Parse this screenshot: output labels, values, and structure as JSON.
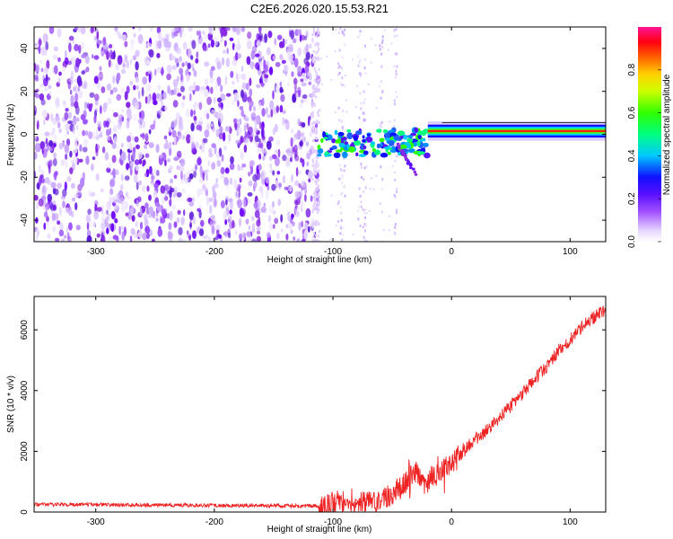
{
  "figure": {
    "title": "C2E6.2026.020.15.53.R21"
  },
  "chart_data": [
    {
      "type": "heatmap",
      "title": "C2E6.2026.020.15.53.R21",
      "xlabel": "Height of straight line (km)",
      "ylabel": "Frequency (Hz)",
      "xlim": [
        -352,
        130
      ],
      "ylim": [
        -50,
        50
      ],
      "xticks": [
        -300,
        -200,
        -100,
        0,
        100
      ],
      "yticks": [
        -40,
        -20,
        0,
        20,
        40
      ],
      "colorbar": {
        "label": "Normalized spectral amplitude",
        "range": [
          0,
          1
        ],
        "ticks": [
          0.0,
          0.2,
          0.4,
          0.6,
          0.8
        ],
        "colormap": [
          "#ffffff",
          "#d8b8ff",
          "#8a2be2",
          "#1010ff",
          "#00e5ff",
          "#00ff40",
          "#ffff00",
          "#ff8000",
          "#ff0000",
          "#ff1493"
        ]
      },
      "regions": [
        {
          "name": "noise",
          "x_range": [
            -352,
            -112
          ],
          "freq_range": [
            -50,
            50
          ],
          "amplitude": 0.15
        },
        {
          "name": "sparse_noise",
          "x_range": [
            -112,
            -45
          ],
          "freq_range": [
            -50,
            50
          ],
          "amplitude": 0.05
        },
        {
          "name": "carrier_onset",
          "x_range": [
            -112,
            -20
          ],
          "freq_range": [
            -15,
            8
          ],
          "amplitude": 0.45
        },
        {
          "name": "carrier",
          "x_range": [
            -20,
            130
          ],
          "freq_center": 1.5,
          "amplitude": 0.9
        }
      ]
    },
    {
      "type": "line",
      "xlabel": "Height of straight line (km)",
      "ylabel": "SNR (10 * v/v)",
      "xlim": [
        -352,
        130
      ],
      "ylim": [
        0,
        7100
      ],
      "xticks": [
        -300,
        -200,
        -100,
        0,
        100
      ],
      "yticks": [
        0,
        2000,
        4000,
        6000
      ],
      "series": [
        {
          "name": "SNR",
          "color": "#ee2222",
          "x": [
            -352,
            -300,
            -250,
            -200,
            -150,
            -110,
            -100,
            -90,
            -80,
            -70,
            -60,
            -50,
            -40,
            -30,
            -20,
            -10,
            0,
            10,
            20,
            30,
            40,
            50,
            60,
            70,
            80,
            90,
            100,
            110,
            120,
            130
          ],
          "y": [
            250,
            240,
            230,
            220,
            210,
            200,
            300,
            400,
            400,
            300,
            350,
            600,
            900,
            1300,
            1100,
            1300,
            1600,
            2000,
            2400,
            2700,
            3100,
            3500,
            3900,
            4400,
            4800,
            5300,
            5700,
            6100,
            6400,
            6700
          ]
        }
      ]
    }
  ]
}
